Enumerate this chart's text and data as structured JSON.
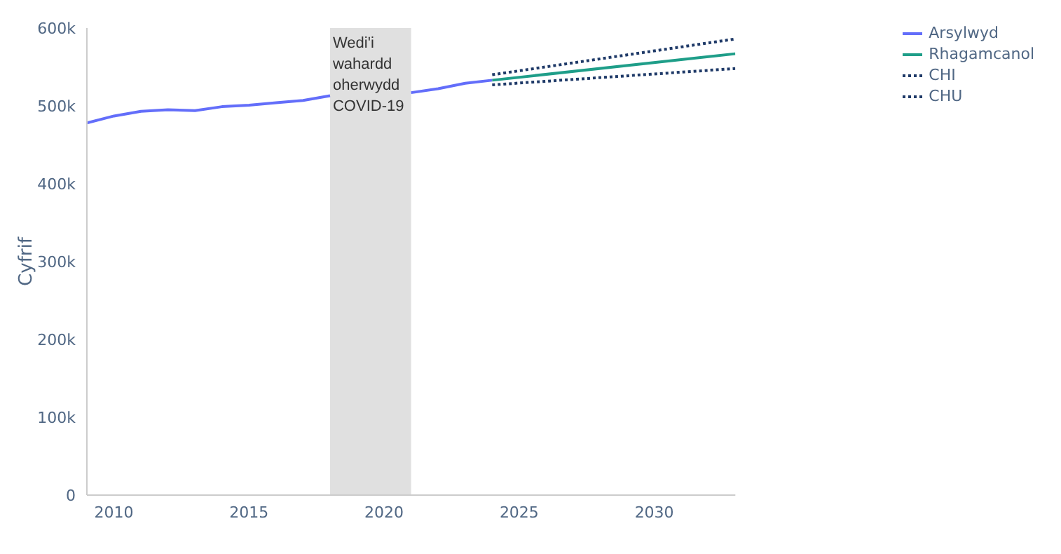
{
  "chart_data": {
    "type": "line",
    "ylabel": "Cyfrif",
    "xlim": [
      2009,
      2033
    ],
    "xticks": [
      2010,
      2015,
      2020,
      2025,
      2030
    ],
    "ylim": [
      0,
      600000
    ],
    "yticks": [
      {
        "value": 0,
        "label": "0"
      },
      {
        "value": 100000,
        "label": "100k"
      },
      {
        "value": 200000,
        "label": "200k"
      },
      {
        "value": 300000,
        "label": "300k"
      },
      {
        "value": 400000,
        "label": "400k"
      },
      {
        "value": 500000,
        "label": "500k"
      },
      {
        "value": 600000,
        "label": "600k"
      }
    ],
    "grid": false,
    "legend": "top right",
    "marker": "none",
    "bands": [
      {
        "axis": "x",
        "from": 2018,
        "to": 2021,
        "label": "Wedi'i wahardd oherwydd COVID-19",
        "color": "#e0e0e0"
      }
    ],
    "series": [
      {
        "name": "Arsylwyd",
        "color": "#636efa",
        "line_style": "solid",
        "x": [
          2009,
          2010,
          2011,
          2012,
          2013,
          2014,
          2015,
          2016,
          2017,
          2018,
          2019,
          2020,
          2021,
          2022,
          2023,
          2024
        ],
        "values": [
          478000,
          487000,
          493000,
          495000,
          494000,
          499000,
          501000,
          504000,
          507000,
          513000,
          null,
          null,
          517000,
          522000,
          529000,
          533000
        ]
      },
      {
        "name": "Rhagamcanol",
        "color": "#1f9e89",
        "line_style": "solid",
        "x": [
          2024,
          2033
        ],
        "values": [
          533000,
          567000
        ]
      },
      {
        "name": "CHI",
        "color": "#1f3a68",
        "line_style": "dotted",
        "x": [
          2024,
          2033
        ],
        "values": [
          527000,
          548000
        ]
      },
      {
        "name": "CHU",
        "color": "#1f3a68",
        "line_style": "dotted",
        "x": [
          2024,
          2033
        ],
        "values": [
          540000,
          586000
        ]
      }
    ]
  }
}
